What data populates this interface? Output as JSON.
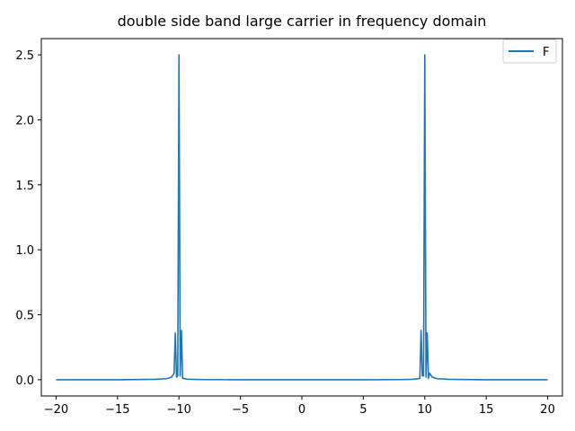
{
  "chart_data": {
    "type": "line",
    "title": "double side band large carrier in frequency domain",
    "xlabel": "",
    "ylabel": "",
    "xlim": [
      -21.2,
      21.2
    ],
    "ylim": [
      -0.125,
      2.625
    ],
    "x_ticks": [
      -20,
      -15,
      -10,
      -5,
      0,
      5,
      10,
      15,
      20
    ],
    "x_tick_labels": [
      "−20",
      "−15",
      "−10",
      "−5",
      "0",
      "5",
      "10",
      "15",
      "20"
    ],
    "y_ticks": [
      0.0,
      0.5,
      1.0,
      1.5,
      2.0,
      2.5
    ],
    "y_tick_labels": [
      "0.0",
      "0.5",
      "1.0",
      "1.5",
      "2.0",
      "2.5"
    ],
    "grid": false,
    "legend": {
      "position": "top-right",
      "entries": [
        "F"
      ]
    },
    "series": [
      {
        "name": "F",
        "color": "#1f77b4",
        "x": [
          -20,
          -15,
          -12,
          -11,
          -10.6,
          -10.4,
          -10.3,
          -10.2,
          -10.1,
          -10.0,
          -9.9,
          -9.8,
          -9.7,
          -9.6,
          -9.4,
          -9,
          -8,
          -5,
          0,
          5,
          8,
          9,
          9.6,
          9.7,
          9.8,
          9.9,
          10.0,
          10.1,
          10.2,
          10.3,
          10.4,
          10.6,
          11,
          12,
          15,
          20
        ],
        "y": [
          0.0,
          0.0,
          0.003,
          0.008,
          0.02,
          0.05,
          0.36,
          0.02,
          0.03,
          2.5,
          0.03,
          0.38,
          0.01,
          0.01,
          0.005,
          0.003,
          0.001,
          0.0,
          0.0,
          0.0,
          0.001,
          0.003,
          0.01,
          0.38,
          0.03,
          0.03,
          2.5,
          0.02,
          0.36,
          0.01,
          0.05,
          0.02,
          0.008,
          0.003,
          0.0,
          0.0
        ]
      }
    ]
  }
}
